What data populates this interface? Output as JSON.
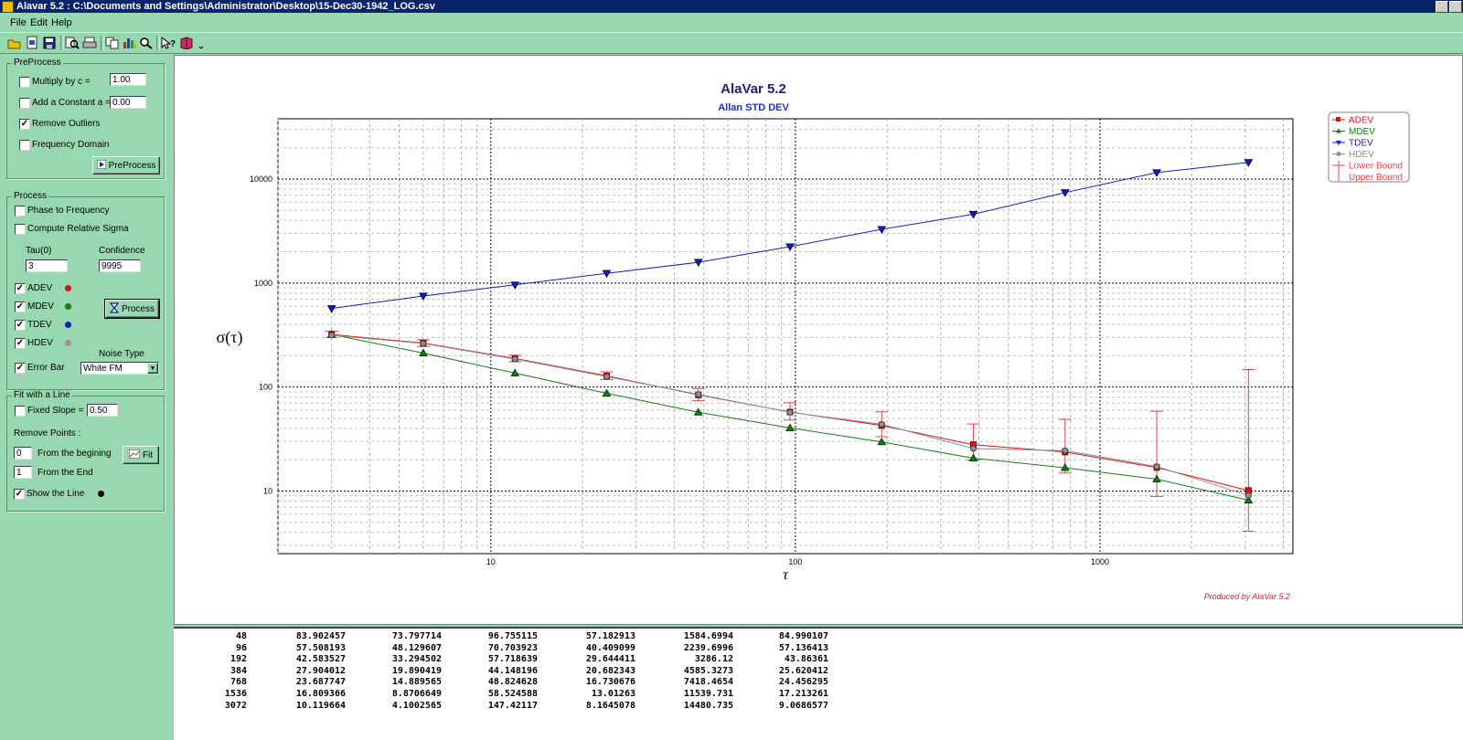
{
  "window": {
    "title": "Alavar 5.2 :  C:\\Documents and Settings\\Administrator\\Desktop\\15-Dec30-1942_LOG.csv"
  },
  "menu": [
    {
      "label": "File"
    },
    {
      "label": "Edit"
    },
    {
      "label": "Help"
    }
  ],
  "preprocess": {
    "legend": "PreProcess",
    "multiply_label": "Multiply by c =",
    "multiply_value": "1.00",
    "add_label": "Add a Constant a =",
    "add_value": "0.00",
    "remove_outliers_label": "Remove Outliers",
    "frequency_domain_label": "Frequency Domain",
    "button_label": "PreProcess"
  },
  "process": {
    "legend": "Process",
    "phase_label": "Phase to Frequency",
    "relative_label": "Compute Relative Sigma",
    "tau_label": "Tau(0)",
    "tau_value": "3",
    "confidence_label": "Confidence",
    "confidence_value": "9995",
    "adev_label": "ADEV",
    "mdev_label": "MDEV",
    "tdev_label": "TDEV",
    "hdev_label": "HDEV",
    "errorbar_label": "Error Bar",
    "noise_type_label": "Noise Type",
    "noise_type_value": "White FM",
    "button_label": "Process"
  },
  "fit": {
    "legend": "Fit with a Line",
    "fixed_slope_label": "Fixed Slope =",
    "fixed_slope_value": "0.50",
    "remove_points_label": "Remove Points :",
    "begin_value": "0",
    "begin_label": "From the begining",
    "end_value": "1",
    "end_label": "From the End",
    "show_line_label": "Show the Line",
    "button_label": "Fit"
  },
  "colors": {
    "adev": "#e01010",
    "mdev": "#108010",
    "tdev": "#1020c0",
    "hdev": "#909090",
    "bounds": "#f04040"
  },
  "chart_data": {
    "type": "line",
    "title": "AlaVar 5.2",
    "subtitle": "Allan STD DEV",
    "xlabel": "τ",
    "ylabel": "σ(τ)",
    "xscale": "log",
    "yscale": "log",
    "xlim": [
      2,
      4300
    ],
    "ylim": [
      2.5,
      38000
    ],
    "grid": true,
    "legend_position": "top-right",
    "footer": "Produced by AlaVar 5.2",
    "x_ticks": [
      "10",
      "100",
      "1000"
    ],
    "y_ticks": [
      "10",
      "100",
      "1000",
      "10000"
    ],
    "x": [
      3,
      6,
      12,
      24,
      48,
      96,
      192,
      384,
      768,
      1536,
      3072
    ],
    "series": [
      {
        "name": "ADEV",
        "values": [
          320,
          265,
          188,
          128,
          83.902457,
          57.508193,
          42.583527,
          27.904012,
          23.687747,
          16.809366,
          10.119664
        ]
      },
      {
        "name": "MDEV",
        "values": [
          320,
          212,
          136,
          87,
          57.182913,
          40.409099,
          29.644411,
          20.682343,
          16.730676,
          13.01263,
          8.1645078
        ]
      },
      {
        "name": "TDEV",
        "values": [
          570,
          750,
          960,
          1240,
          1584.6994,
          2239.6996,
          3286.12,
          4585.3273,
          7418.4654,
          11539.731,
          14480.735
        ]
      },
      {
        "name": "HDEV",
        "values": [
          315,
          262,
          186,
          126,
          84.990107,
          57.136413,
          43.86361,
          25.620412,
          24.456295,
          17.213261,
          9.0686577
        ]
      },
      {
        "name": "Lower Bound",
        "values": [
          300,
          245,
          175,
          118,
          73.797714,
          48.129607,
          33.294502,
          19.890419,
          14.889565,
          8.8706649,
          4.1002565
        ]
      },
      {
        "name": "Upper Bound",
        "values": [
          345,
          285,
          202,
          140,
          96.755115,
          70.703923,
          57.718639,
          44.148196,
          48.824628,
          58.524588,
          147.42117
        ]
      }
    ]
  },
  "table": {
    "rows": [
      [
        "48",
        "83.902457",
        "73.797714",
        "96.755115",
        "57.182913",
        "1584.6994",
        "84.990107"
      ],
      [
        "96",
        "57.508193",
        "48.129607",
        "70.703923",
        "40.409099",
        "2239.6996",
        "57.136413"
      ],
      [
        "192",
        "42.583527",
        "33.294502",
        "57.718639",
        "29.644411",
        "3286.12",
        "43.86361"
      ],
      [
        "384",
        "27.904012",
        "19.890419",
        "44.148196",
        "20.682343",
        "4585.3273",
        "25.620412"
      ],
      [
        "768",
        "23.687747",
        "14.889565",
        "48.824628",
        "16.730676",
        "7418.4654",
        "24.456295"
      ],
      [
        "1536",
        "16.809366",
        "8.8706649",
        "58.524588",
        "13.01263",
        "11539.731",
        "17.213261"
      ],
      [
        "3072",
        "10.119664",
        "4.1002565",
        "147.42117",
        "8.1645078",
        "14480.735",
        "9.0686577"
      ]
    ]
  }
}
